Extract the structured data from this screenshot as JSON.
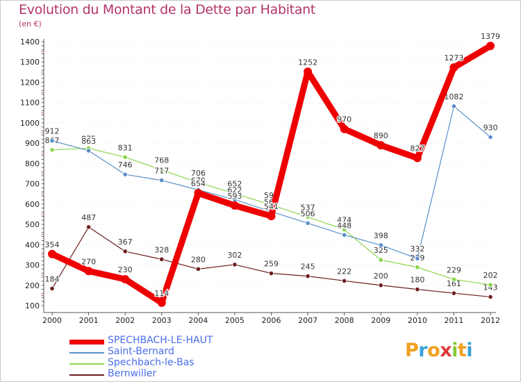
{
  "chart_data": {
    "type": "line",
    "title": "Evolution du Montant de la Dette par Habitant",
    "subtitle": "(en €)",
    "xlabel": "",
    "ylabel": "",
    "categories": [
      "2000",
      "2001",
      "2002",
      "2003",
      "2004",
      "2005",
      "2006",
      "2007",
      "2008",
      "2009",
      "2010",
      "2011",
      "2012"
    ],
    "ylim": [
      100,
      1400
    ],
    "yticks": [
      100,
      200,
      300,
      400,
      500,
      600,
      700,
      800,
      900,
      1000,
      1100,
      1200,
      1300,
      1400
    ],
    "series": [
      {
        "name": "Bernwiller",
        "color": "#6b1d1d",
        "values": [
          184,
          487,
          367,
          328,
          280,
          302,
          259,
          245,
          222,
          200,
          180,
          161,
          143
        ],
        "labels": [
          "184",
          "487",
          "367",
          "328",
          "280",
          "302",
          "259",
          "245",
          "222",
          "200",
          "180",
          "161",
          "143"
        ]
      },
      {
        "name": "Spechbach-le-Bas",
        "color": "#88d64a",
        "values": [
          867,
          875,
          831,
          768,
          706,
          652,
          596,
          537,
          474,
          325,
          289,
          229,
          202
        ],
        "labels": [
          "867",
          "875",
          "831",
          "768",
          "706",
          "652",
          "596",
          "537",
          "474",
          "325",
          "289",
          "229",
          "202"
        ]
      },
      {
        "name": "Saint-Bernard",
        "color": "#5b8fc7",
        "values": [
          912,
          863,
          746,
          717,
          670,
          622,
          563,
          506,
          448,
          398,
          332,
          1082,
          930
        ],
        "labels": [
          "912",
          "863",
          "746",
          "717",
          "670",
          "622",
          "563",
          "506",
          "448",
          "398",
          "332",
          "1082",
          "930"
        ]
      },
      {
        "name": "SPECHBACH-LE-HAUT",
        "color": "#ee0000",
        "values": [
          354,
          270,
          230,
          114,
          654,
          593,
          541,
          1252,
          970,
          890,
          827,
          1273,
          1379
        ],
        "labels": [
          "354",
          "270",
          "230",
          "114",
          "654",
          "593",
          "541",
          "1252",
          "970",
          "890",
          "827",
          "1273",
          "1379"
        ]
      }
    ],
    "legend": [
      "SPECHBACH-LE-HAUT",
      "Saint-Bernard",
      "Spechbach-le-Bas",
      "Bernwiller"
    ],
    "legend_position": "bottom-left"
  },
  "brand": {
    "logo_letters": [
      "P",
      "r",
      "o",
      "x",
      "i",
      "t",
      "i"
    ],
    "logo_colors": [
      "#f0a020",
      "#3aa0d8",
      "#f0a020",
      "#e03a3a",
      "#88c83a",
      "#f0a020",
      "#3aa0d8"
    ]
  }
}
